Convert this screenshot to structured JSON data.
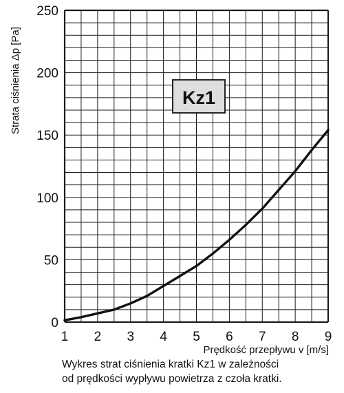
{
  "chart_data": {
    "type": "line",
    "title": "",
    "xlabel": "Prędkość przepływu v [m/s]",
    "ylabel": "Strata ciśnienia Δp [Pa]",
    "xlim": [
      1,
      9
    ],
    "ylim": [
      0,
      250
    ],
    "x_ticks": [
      "1",
      "2",
      "3",
      "4",
      "5",
      "6",
      "7",
      "8",
      "9"
    ],
    "y_ticks": [
      "0",
      "50",
      "100",
      "150",
      "200",
      "250"
    ],
    "grid": true,
    "x_minor_step": 0.5,
    "y_minor_step": 10,
    "annotation": "Kz1",
    "series": [
      {
        "x": [
          1.0,
          1.5,
          2.0,
          2.5,
          3.0,
          3.5,
          4.0,
          4.5,
          5.0,
          5.5,
          6.0,
          6.5,
          7.0,
          7.5,
          8.0,
          8.5,
          9.0
        ],
        "y": [
          1.5,
          4,
          7,
          10,
          15,
          21,
          29,
          37,
          45,
          55,
          66,
          78,
          91,
          106,
          121,
          138,
          154
        ]
      }
    ],
    "colors": {
      "line": "#111111",
      "grid": "#1a1a1a",
      "badge_fill": "#dedede",
      "badge_border": "#111111"
    }
  },
  "caption": {
    "line1": "Wykres strat ciśnienia kratki Kz1 w zależności",
    "line2": "od prędkości wypływu powietrza z czoła kratki."
  }
}
